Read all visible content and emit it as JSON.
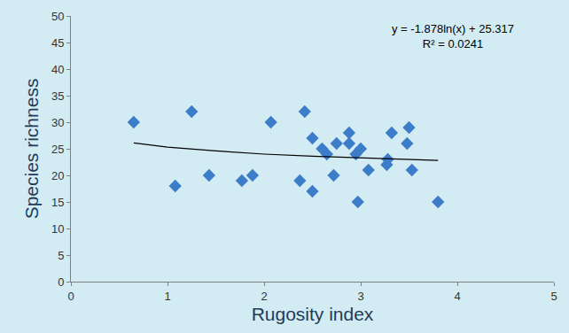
{
  "chart_data": {
    "type": "scatter",
    "x_label": "Rugosity index",
    "y_label": "Species richness",
    "xlim": [
      0,
      5
    ],
    "xticks": [
      0,
      1,
      2,
      3,
      4,
      5
    ],
    "ylim": [
      0,
      50
    ],
    "yticks": [
      0,
      5,
      10,
      15,
      20,
      25,
      30,
      35,
      40,
      45,
      50
    ],
    "grid": false,
    "annotations": [
      "y = -1.878ln(x) + 25.317",
      "R² = 0.0241"
    ],
    "series": [
      {
        "type": "scatter",
        "marker": "diamond",
        "color": "#3b7dc8",
        "x": [
          0.65,
          1.08,
          1.25,
          1.43,
          1.77,
          1.88,
          2.07,
          2.37,
          2.42,
          2.5,
          2.5,
          2.6,
          2.65,
          2.72,
          2.75,
          2.88,
          2.88,
          2.95,
          2.97,
          3.0,
          3.08,
          3.27,
          3.28,
          3.32,
          3.48,
          3.5,
          3.53,
          3.8
        ],
        "values": [
          30,
          18,
          32,
          20,
          19,
          20,
          30,
          19,
          32,
          27,
          17,
          25,
          24,
          20,
          26,
          28,
          26,
          24,
          15,
          25,
          21,
          22,
          23,
          28,
          26,
          29,
          21,
          15
        ]
      },
      {
        "type": "line",
        "color": "#000000",
        "line_style": "solid",
        "x": [
          0.65,
          1.0,
          1.5,
          2.0,
          2.5,
          3.0,
          3.5,
          3.8
        ],
        "values": [
          26.1,
          25.3,
          24.6,
          24.0,
          23.6,
          23.3,
          23.0,
          22.8
        ]
      }
    ]
  }
}
